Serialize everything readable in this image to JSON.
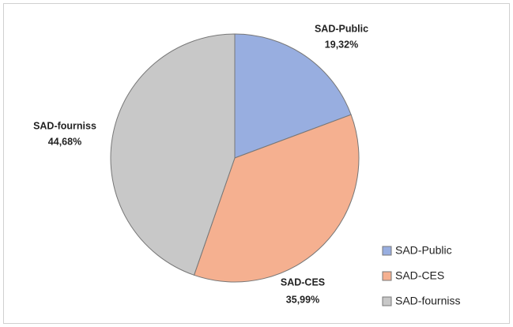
{
  "chart_data": {
    "type": "pie",
    "categories": [
      "SAD-Public",
      "SAD-CES",
      "SAD-fourniss"
    ],
    "values": [
      19.32,
      35.99,
      44.68
    ],
    "value_labels": [
      "19,32%",
      "35,99%",
      "44,68%"
    ],
    "colors": [
      "#98aee0",
      "#f5b090",
      "#c8c8c8"
    ],
    "legend": "lower right"
  }
}
